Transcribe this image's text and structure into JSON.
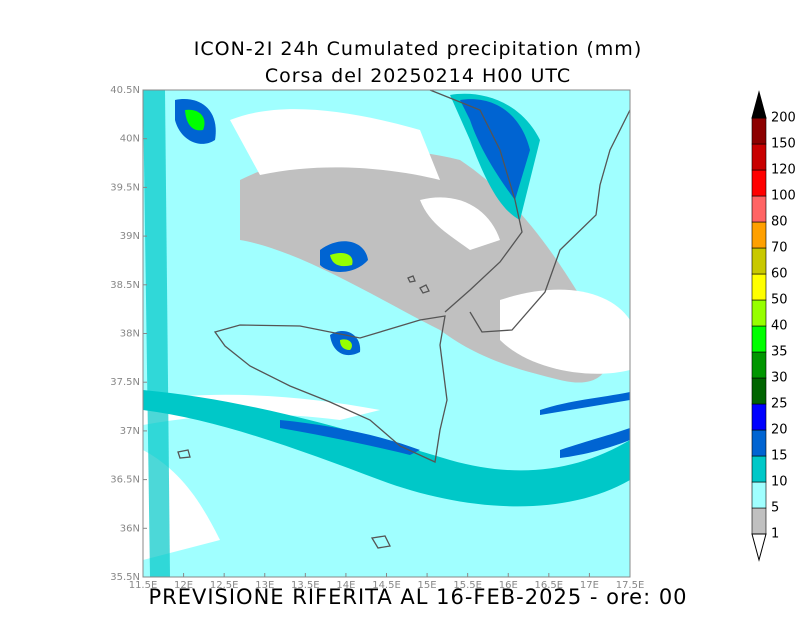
{
  "title": [
    "ICON-2I  24h Cumulated precipitation (mm)",
    "Corsa del 20250214 H00 UTC"
  ],
  "footer": "PREVISIONE RIFERITA AL 16-FEB-2025 - ore: 00",
  "lat_ticks": [
    "40.5N",
    "40N",
    "39.5N",
    "39N",
    "38.5N",
    "38N",
    "37.5N",
    "37N",
    "36.5N",
    "36N",
    "35.5N"
  ],
  "lon_ticks": [
    "11.5E",
    "12E",
    "12.5E",
    "13E",
    "13.5E",
    "14E",
    "14.5E",
    "15E",
    "15.5E",
    "16E",
    "16.5E",
    "17E",
    "17.5E"
  ],
  "colorbar": {
    "levels": [
      1,
      5,
      10,
      15,
      20,
      25,
      30,
      35,
      40,
      50,
      60,
      70,
      80,
      100,
      120,
      150,
      200
    ],
    "colors": [
      "#c0c0c0",
      "#a0ffff",
      "#00c8c8",
      "#0064d2",
      "#0000ff",
      "#006400",
      "#009600",
      "#00ff00",
      "#96ff00",
      "#ffff00",
      "#c8c800",
      "#ffa000",
      "#ff6464",
      "#ff0000",
      "#c80000",
      "#8c0000"
    ],
    "under_color": "#ffffff",
    "over_color": "#000000"
  }
}
